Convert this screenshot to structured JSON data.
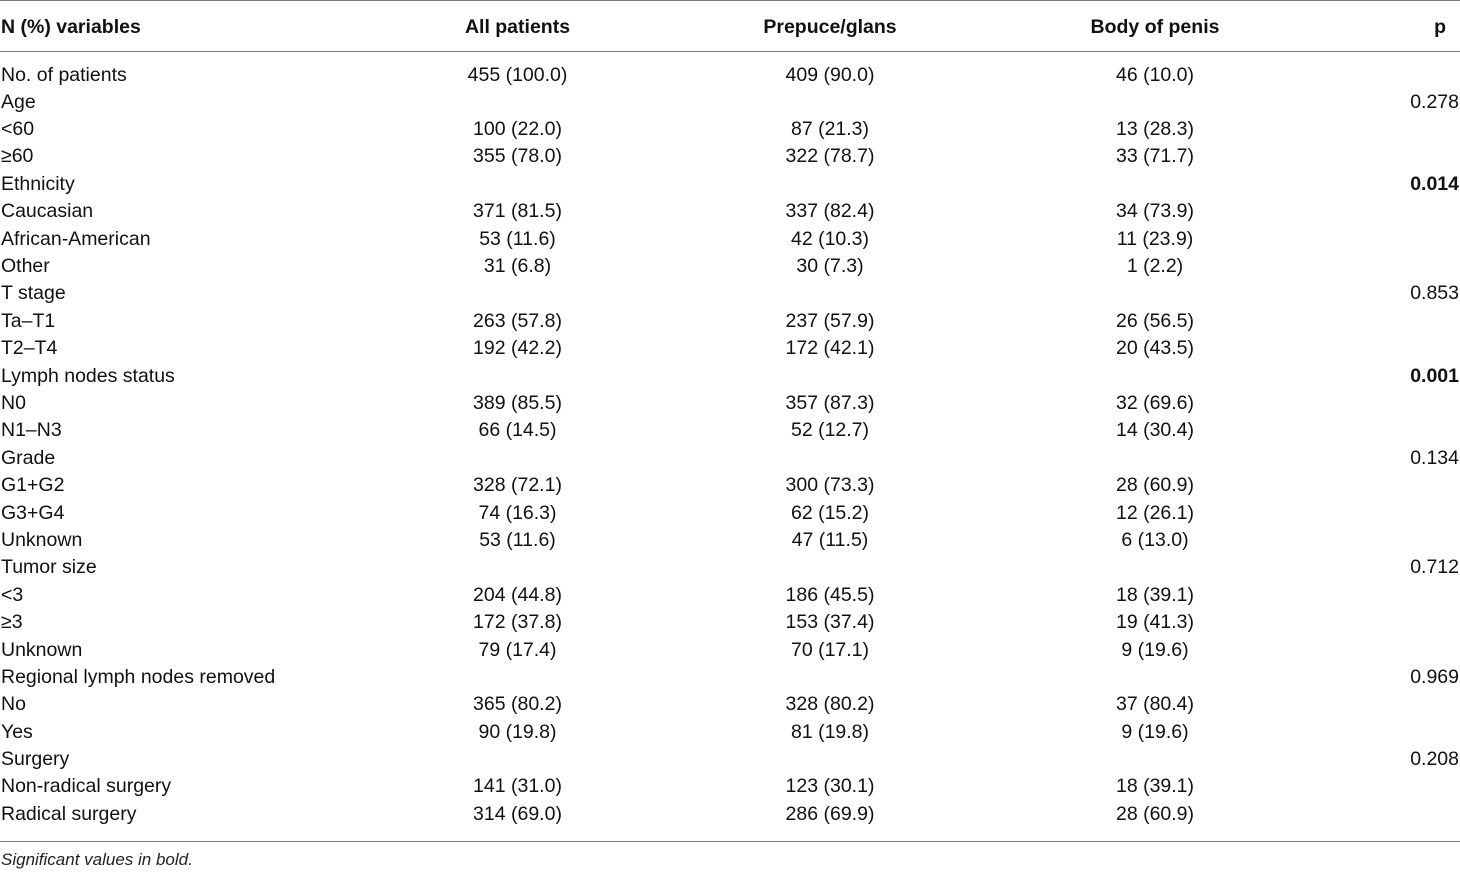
{
  "table": {
    "headers": [
      "N (%) variables",
      "All patients",
      "Prepuce/glans",
      "Body of penis",
      "p"
    ],
    "rows": [
      {
        "label": "No. of patients",
        "all": "455 (100.0)",
        "prepuce": "409 (90.0)",
        "body": "46 (10.0)",
        "p": "",
        "p_bold": false
      },
      {
        "label": "Age",
        "all": "",
        "prepuce": "",
        "body": "",
        "p": "0.278",
        "p_bold": false
      },
      {
        "label": "<60",
        "all": "100 (22.0)",
        "prepuce": "87 (21.3)",
        "body": "13 (28.3)",
        "p": "",
        "p_bold": false
      },
      {
        "label": "≥60",
        "all": "355 (78.0)",
        "prepuce": "322 (78.7)",
        "body": "33 (71.7)",
        "p": "",
        "p_bold": false
      },
      {
        "label": "Ethnicity",
        "all": "",
        "prepuce": "",
        "body": "",
        "p": "0.014",
        "p_bold": true
      },
      {
        "label": "Caucasian",
        "all": "371 (81.5)",
        "prepuce": "337 (82.4)",
        "body": "34 (73.9)",
        "p": "",
        "p_bold": false
      },
      {
        "label": "African-American",
        "all": "53 (11.6)",
        "prepuce": "42 (10.3)",
        "body": "11 (23.9)",
        "p": "",
        "p_bold": false
      },
      {
        "label": "Other",
        "all": "31 (6.8)",
        "prepuce": "30 (7.3)",
        "body": "1 (2.2)",
        "p": "",
        "p_bold": false
      },
      {
        "label": "T stage",
        "all": "",
        "prepuce": "",
        "body": "",
        "p": "0.853",
        "p_bold": false
      },
      {
        "label": "Ta–T1",
        "all": "263 (57.8)",
        "prepuce": "237 (57.9)",
        "body": "26 (56.5)",
        "p": "",
        "p_bold": false
      },
      {
        "label": "T2–T4",
        "all": "192 (42.2)",
        "prepuce": "172 (42.1)",
        "body": "20 (43.5)",
        "p": "",
        "p_bold": false
      },
      {
        "label": "Lymph nodes status",
        "all": "",
        "prepuce": "",
        "body": "",
        "p": "0.001",
        "p_bold": true
      },
      {
        "label": "N0",
        "all": "389 (85.5)",
        "prepuce": "357 (87.3)",
        "body": "32 (69.6)",
        "p": "",
        "p_bold": false
      },
      {
        "label": "N1–N3",
        "all": "66 (14.5)",
        "prepuce": "52 (12.7)",
        "body": "14 (30.4)",
        "p": "",
        "p_bold": false
      },
      {
        "label": "Grade",
        "all": "",
        "prepuce": "",
        "body": "",
        "p": "0.134",
        "p_bold": false
      },
      {
        "label": "G1+G2",
        "all": "328 (72.1)",
        "prepuce": "300 (73.3)",
        "body": "28 (60.9)",
        "p": "",
        "p_bold": false
      },
      {
        "label": "G3+G4",
        "all": "74 (16.3)",
        "prepuce": "62 (15.2)",
        "body": "12 (26.1)",
        "p": "",
        "p_bold": false
      },
      {
        "label": "Unknown",
        "all": "53 (11.6)",
        "prepuce": "47 (11.5)",
        "body": "6 (13.0)",
        "p": "",
        "p_bold": false
      },
      {
        "label": "Tumor size",
        "all": "",
        "prepuce": "",
        "body": "",
        "p": "0.712",
        "p_bold": false
      },
      {
        "label": "<3",
        "all": "204 (44.8)",
        "prepuce": "186 (45.5)",
        "body": "18 (39.1)",
        "p": "",
        "p_bold": false
      },
      {
        "label": "≥3",
        "all": "172 (37.8)",
        "prepuce": "153 (37.4)",
        "body": "19 (41.3)",
        "p": "",
        "p_bold": false
      },
      {
        "label": "Unknown",
        "all": "79 (17.4)",
        "prepuce": "70 (17.1)",
        "body": "9 (19.6)",
        "p": "",
        "p_bold": false
      },
      {
        "label": "Regional lymph nodes removed",
        "all": "",
        "prepuce": "",
        "body": "",
        "p": "0.969",
        "p_bold": false
      },
      {
        "label": "No",
        "all": "365 (80.2)",
        "prepuce": "328 (80.2)",
        "body": "37 (80.4)",
        "p": "",
        "p_bold": false
      },
      {
        "label": "Yes",
        "all": "90 (19.8)",
        "prepuce": "81 (19.8)",
        "body": "9 (19.6)",
        "p": "",
        "p_bold": false
      },
      {
        "label": "Surgery",
        "all": "",
        "prepuce": "",
        "body": "",
        "p": "0.208",
        "p_bold": false
      },
      {
        "label": "Non-radical surgery",
        "all": "141 (31.0)",
        "prepuce": "123 (30.1)",
        "body": "18 (39.1)",
        "p": "",
        "p_bold": false
      },
      {
        "label": "Radical surgery",
        "all": "314 (69.0)",
        "prepuce": "286 (69.9)",
        "body": "28 (60.9)",
        "p": "",
        "p_bold": false
      }
    ]
  },
  "footnote": "Significant values in bold."
}
